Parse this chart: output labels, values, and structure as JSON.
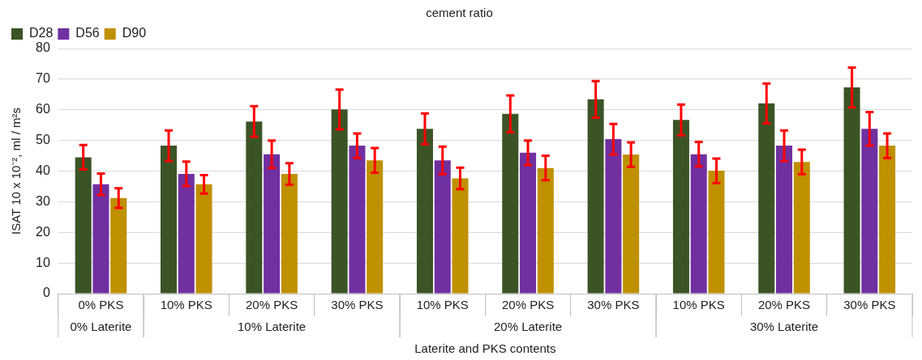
{
  "chart_data": {
    "type": "bar",
    "title": "cement ratio",
    "xlabel": "Laterite and PKS contents",
    "ylabel": "ISAT 10 x 10⁻², ml / m²s",
    "categories": [
      "0% PKS",
      "10% PKS",
      "20% PKS",
      "30% PKS",
      "10% PKS",
      "20% PKS",
      "30% PKS",
      "10% PKS",
      "20% PKS",
      "30% PKS"
    ],
    "series": [
      {
        "name": "D28",
        "color": "#3b5426",
        "values": [
          44.5,
          48.3,
          56.2,
          60.1,
          53.8,
          58.7,
          63.4,
          56.7,
          62.1,
          67.3
        ],
        "errors": [
          4,
          5,
          5,
          6.5,
          5,
          6,
          6,
          5,
          6.5,
          6.5
        ]
      },
      {
        "name": "D56",
        "color": "#7030a0",
        "values": [
          35.7,
          39.1,
          45.5,
          48.3,
          43.5,
          46,
          50.4,
          45.5,
          48.3,
          53.8
        ],
        "errors": [
          3.5,
          4,
          4.5,
          4,
          4.5,
          4,
          5,
          4,
          5,
          5.5
        ]
      },
      {
        "name": "D90",
        "color": "#bf9000",
        "values": [
          31.2,
          35.7,
          39.1,
          43.5,
          37.6,
          41,
          45.4,
          40.1,
          43,
          48.3
        ],
        "errors": [
          3.2,
          3,
          3.5,
          4,
          3.5,
          4,
          4,
          4,
          4,
          4
        ]
      }
    ],
    "annotations": [
      "0% Laterite",
      "10% Laterite",
      "20% Laterite",
      "30% Laterite"
    ],
    "ylim": [
      0,
      80
    ],
    "yticks": [
      0,
      10,
      20,
      30,
      40,
      50,
      60,
      70,
      80
    ],
    "grid": "y",
    "legend": "top left"
  }
}
